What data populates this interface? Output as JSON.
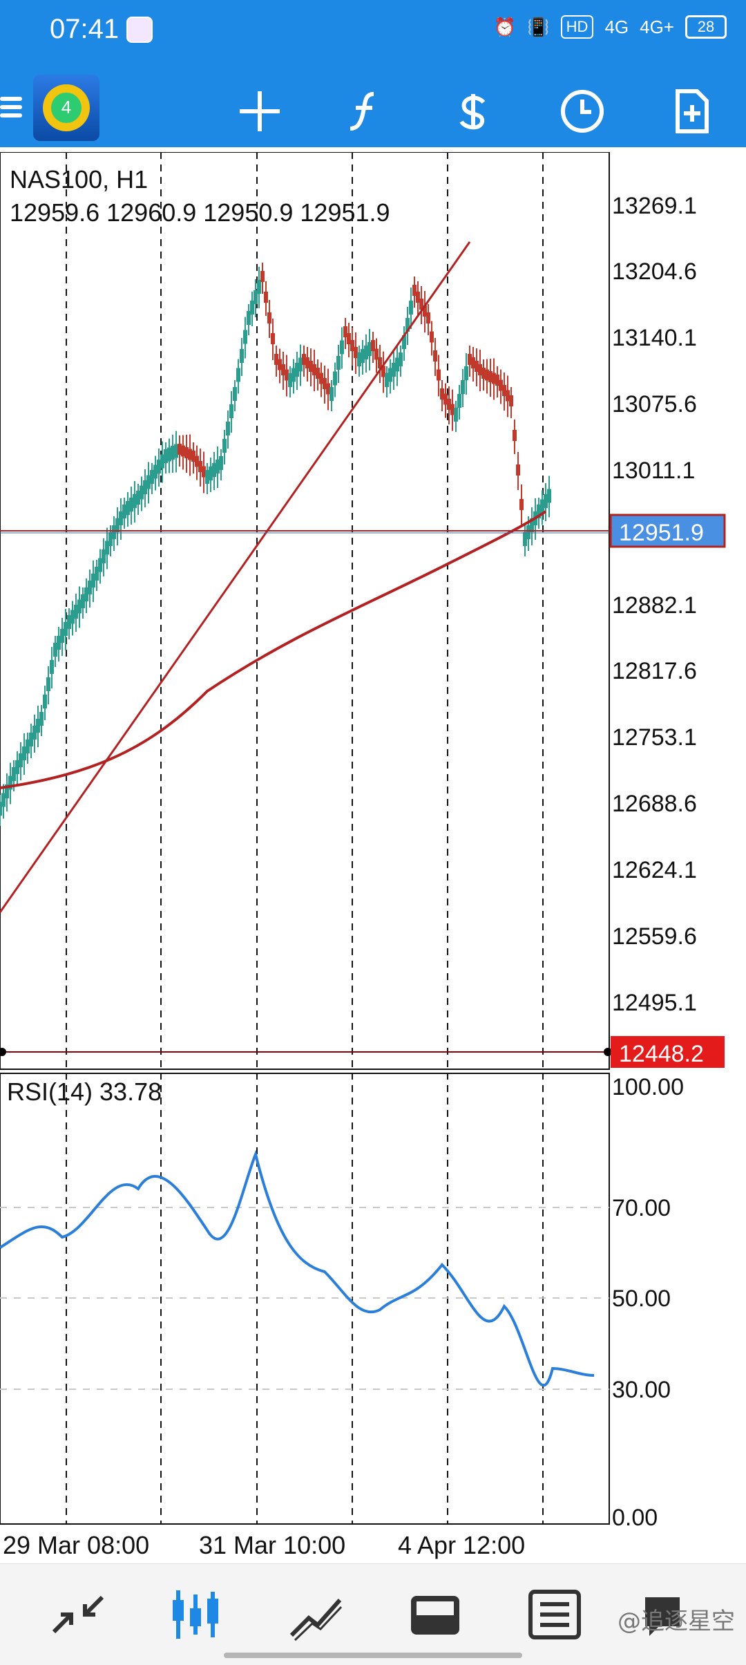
{
  "status_bar": {
    "time": "07:41",
    "network1": "4G",
    "network2": "4G+",
    "hd_label": "HD",
    "battery": "28"
  },
  "toolbar": {
    "icons": [
      "menu-icon",
      "app-logo",
      "crosshair-icon",
      "function-icon",
      "currency-icon",
      "clock-icon",
      "new-document-icon"
    ]
  },
  "chart": {
    "symbol_timeframe": "NAS100, H1",
    "ohlc": "12959.6 12960.9 12950.9 12951.9",
    "price_badge": "12951.9",
    "level_badge": "12448.2",
    "price_ticks": [
      "13269.1",
      "13204.6",
      "13140.1",
      "13075.6",
      "13011.1",
      "12882.1",
      "12817.6",
      "12753.1",
      "12688.6",
      "12624.1",
      "12559.6",
      "12495.1"
    ],
    "rsi_label": "RSI(14) 33.78",
    "rsi_ticks": [
      "100.00",
      "70.00",
      "50.00",
      "30.00",
      "0.00"
    ],
    "time_labels": [
      "29 Mar 08:00",
      "31 Mar 10:00",
      "4 Apr 12:00"
    ],
    "colors": {
      "bull": "#2a9d8f",
      "bear": "#c0392b",
      "ma": "#b22222",
      "rsi": "#2b7fd9",
      "price_badge": "#4a90e2"
    }
  },
  "bottom_nav": {
    "items": [
      "quotes-icon",
      "chart-icon",
      "trade-icon",
      "history-icon",
      "news-icon",
      "messages-icon"
    ]
  },
  "watermark": "@追逐星空"
}
